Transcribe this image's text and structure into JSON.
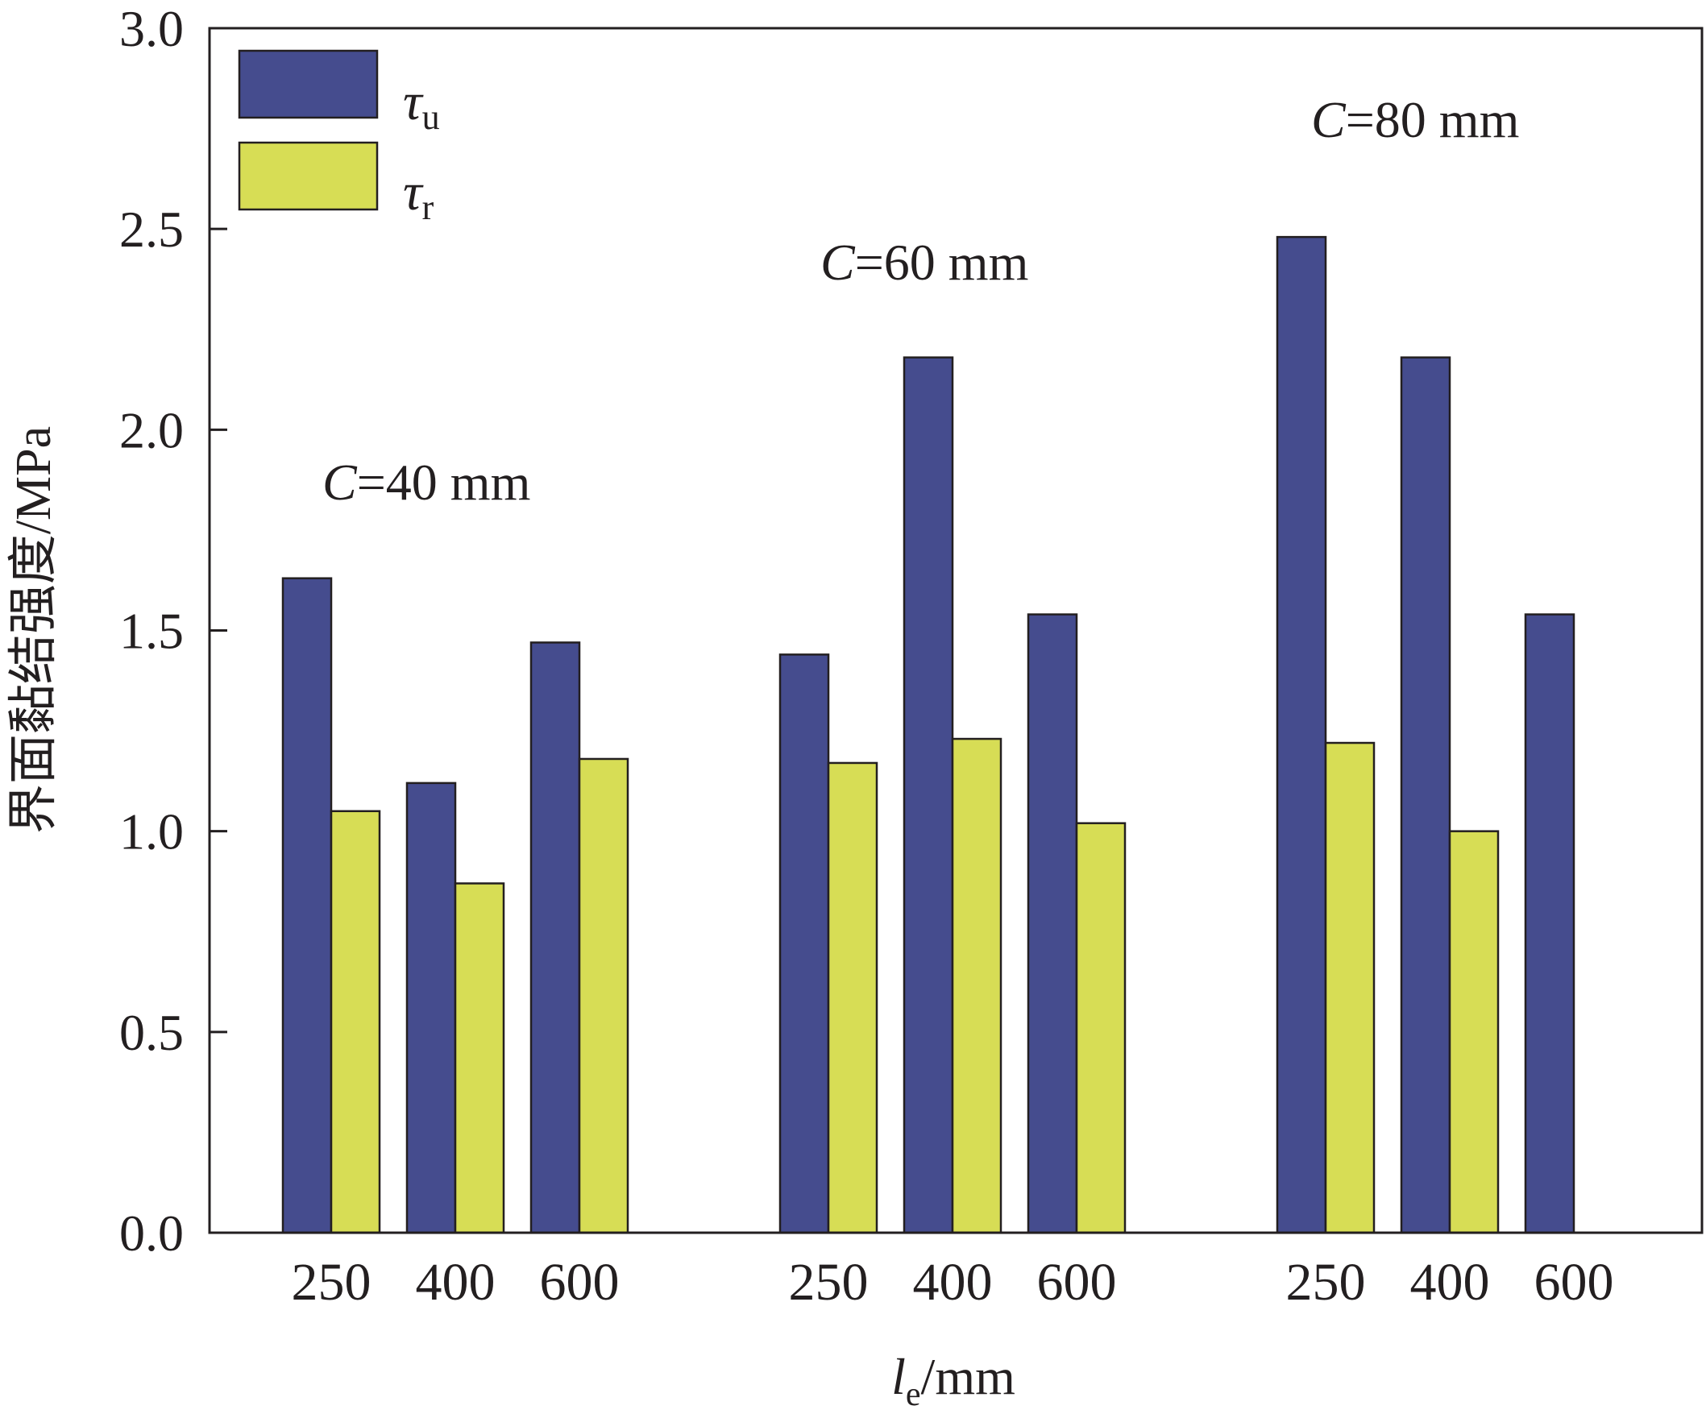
{
  "chart_data": {
    "type": "bar",
    "ylabel": "界面黏结强度/MPa",
    "xlabel": {
      "main": "l",
      "sub": "e",
      "unit": "/mm"
    },
    "ylim": [
      0,
      3.0
    ],
    "yticks": [
      "0.0",
      "0.5",
      "1.0",
      "1.5",
      "2.0",
      "2.5",
      "3.0"
    ],
    "grid": false,
    "legend_position": "top-left",
    "groups": [
      {
        "label_var": "C",
        "label_rest": "=40 mm",
        "categories": [
          "250",
          "400",
          "600"
        ]
      },
      {
        "label_var": "C",
        "label_rest": "=60 mm",
        "categories": [
          "250",
          "400",
          "600"
        ]
      },
      {
        "label_var": "C",
        "label_rest": "=80 mm",
        "categories": [
          "250",
          "400",
          "600"
        ]
      }
    ],
    "series": [
      {
        "symbol": "τ",
        "subscript": "u",
        "color": "#454c8e",
        "values": [
          [
            1.63,
            1.12,
            1.47
          ],
          [
            1.44,
            2.18,
            1.54
          ],
          [
            2.48,
            2.18,
            1.54
          ]
        ]
      },
      {
        "symbol": "τ",
        "subscript": "r",
        "color": "#d7dd55",
        "values": [
          [
            1.05,
            0.87,
            1.18
          ],
          [
            1.17,
            1.23,
            1.02
          ],
          [
            1.22,
            1.0,
            null
          ]
        ]
      }
    ]
  }
}
